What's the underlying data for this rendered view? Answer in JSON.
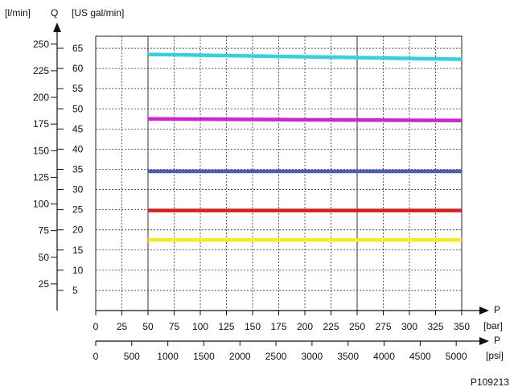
{
  "chart_data": {
    "type": "line",
    "title": "",
    "grid": true,
    "y_axis_letter": "Q",
    "y_unit_lpm": "[l/min]",
    "y_unit_gpm": "[US gal/min]",
    "y_ticks_lpm": [
      25,
      50,
      75,
      100,
      125,
      150,
      175,
      200,
      225,
      250
    ],
    "y_ticks_gpm": [
      5,
      10,
      15,
      20,
      25,
      30,
      35,
      40,
      45,
      50,
      55,
      60,
      65
    ],
    "x_axis_letter_bar": "P",
    "x_unit_bar": "[bar]",
    "x_ticks_bar": [
      0,
      25,
      50,
      75,
      100,
      125,
      150,
      175,
      200,
      225,
      250,
      275,
      300,
      325,
      350
    ],
    "x_axis_letter_psi": "P",
    "x_unit_psi": "[psi]",
    "x_ticks_psi": [
      0,
      500,
      1000,
      1500,
      2000,
      2500,
      3000,
      3500,
      4000,
      4500,
      5000
    ],
    "ylim_gpm": [
      0,
      68
    ],
    "xlim_bar": [
      0,
      350
    ],
    "series": [
      {
        "color": "#2fd3e0",
        "x": [
          50,
          350
        ],
        "y": [
          63.5,
          62.3
        ]
      },
      {
        "color": "#d81fd8",
        "x": [
          50,
          350
        ],
        "y": [
          47.5,
          47.1
        ]
      },
      {
        "color": "#4a5fb0",
        "x": [
          50,
          350
        ],
        "y": [
          34.5,
          34.5
        ]
      },
      {
        "color": "#e01c1c",
        "x": [
          50,
          350
        ],
        "y": [
          24.8,
          24.8
        ]
      },
      {
        "color": "#f2ee1a",
        "x": [
          50,
          350
        ],
        "y": [
          17.5,
          17.5
        ]
      }
    ],
    "figure_id": "P109213"
  }
}
